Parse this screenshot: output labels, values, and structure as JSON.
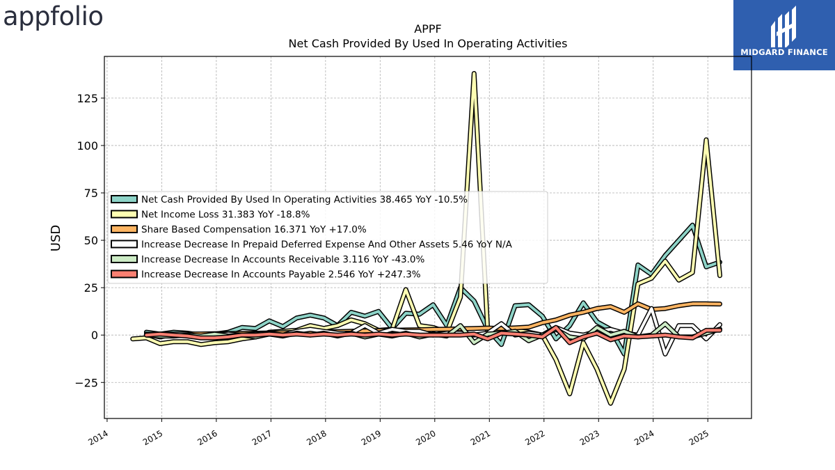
{
  "brand": {
    "logo_text": "appfolio",
    "badge_text": "MIDGARD FINANCE"
  },
  "colors": {
    "net_cash": "#8dd3c7",
    "net_income": "#ffffb3",
    "sbc": "#fdb462",
    "prepaid": "#ffffff",
    "receivable": "#ccebc5",
    "payable": "#fb8072"
  },
  "chart_data": {
    "type": "line",
    "title": "APPF",
    "subtitle": "Net Cash Provided By Used In Operating Activities",
    "ylabel": "USD",
    "xlabel": "",
    "xlim": [
      2013.95,
      2025.8
    ],
    "ylim": [
      -44,
      147
    ],
    "x_ticks": [
      2014,
      2015,
      2016,
      2017,
      2018,
      2019,
      2020,
      2021,
      2022,
      2023,
      2024,
      2025
    ],
    "y_ticks": [
      -25,
      0,
      25,
      50,
      75,
      100,
      125
    ],
    "y_tick_labels": [
      "−25",
      "0",
      "25",
      "50",
      "75",
      "100",
      "125"
    ],
    "grid": true,
    "legend_position": "center-left",
    "series": [
      {
        "name": "Net Cash Provided By Used In Operating Activities",
        "legend": "Net Cash Provided By Used In Operating Activities  38.465 YoY -10.5%",
        "color": "#8dd3c7",
        "x": [
          2014.72,
          2014.97,
          2015.22,
          2015.47,
          2015.72,
          2015.97,
          2016.22,
          2016.47,
          2016.72,
          2016.97,
          2017.22,
          2017.47,
          2017.72,
          2017.97,
          2018.22,
          2018.47,
          2018.72,
          2018.97,
          2019.22,
          2019.47,
          2019.72,
          2019.97,
          2020.22,
          2020.47,
          2020.72,
          2020.97,
          2021.22,
          2021.47,
          2021.72,
          2021.97,
          2022.22,
          2022.47,
          2022.72,
          2022.97,
          2023.22,
          2023.47,
          2023.72,
          2023.97,
          2024.22,
          2024.47,
          2024.72,
          2024.97,
          2025.22
        ],
        "y": [
          1.5,
          0.5,
          1.5,
          1,
          0,
          0.5,
          1.5,
          4,
          3.5,
          7.5,
          4.5,
          9,
          10.5,
          9,
          5,
          12,
          10,
          12.5,
          3.5,
          11.5,
          11,
          16,
          5,
          25,
          18,
          3,
          -5,
          15.5,
          16,
          10,
          -2,
          5,
          17,
          7,
          3,
          -10,
          37,
          32,
          42,
          50,
          58,
          36,
          38.465
        ]
      },
      {
        "name": "Net Income Loss",
        "legend": "Net Income Loss  31.383 YoY -18.8%",
        "color": "#ffffb3",
        "x": [
          2014.47,
          2014.72,
          2014.97,
          2015.22,
          2015.47,
          2015.72,
          2015.97,
          2016.22,
          2016.47,
          2016.72,
          2016.97,
          2017.22,
          2017.47,
          2017.72,
          2017.97,
          2018.22,
          2018.47,
          2018.72,
          2018.97,
          2019.22,
          2019.47,
          2019.72,
          2019.97,
          2020.22,
          2020.47,
          2020.72,
          2020.97,
          2021.22,
          2021.47,
          2021.72,
          2021.97,
          2022.22,
          2022.47,
          2022.72,
          2022.97,
          2023.22,
          2023.47,
          2023.72,
          2023.97,
          2024.22,
          2024.47,
          2024.72,
          2024.97,
          2025.22
        ],
        "y": [
          -2,
          -1.5,
          -4.5,
          -3.5,
          -3.5,
          -5,
          -4,
          -3.5,
          -2,
          -1,
          1.5,
          2,
          2.5,
          5,
          3.5,
          5,
          8,
          6,
          2.5,
          3,
          24,
          5,
          4,
          1.5,
          20,
          138,
          2,
          3,
          2.5,
          1.5,
          0,
          -13,
          -31,
          -4,
          -18,
          -36,
          -18,
          27,
          30,
          39,
          29,
          33,
          103,
          31.383
        ]
      },
      {
        "name": "Share Based Compensation",
        "legend": "Share Based Compensation  16.371 YoY +17.0%",
        "color": "#fdb462",
        "x": [
          2014.72,
          2014.97,
          2015.22,
          2015.47,
          2015.72,
          2015.97,
          2016.22,
          2016.47,
          2016.72,
          2016.97,
          2017.22,
          2017.47,
          2017.72,
          2017.97,
          2018.22,
          2018.47,
          2018.72,
          2018.97,
          2019.22,
          2019.47,
          2019.72,
          2019.97,
          2020.22,
          2020.47,
          2020.72,
          2020.97,
          2021.22,
          2021.47,
          2021.72,
          2021.97,
          2022.22,
          2022.47,
          2022.72,
          2022.97,
          2023.22,
          2023.47,
          2023.72,
          2023.97,
          2024.22,
          2024.47,
          2024.72,
          2024.97,
          2025.22
        ],
        "y": [
          0.4,
          0.5,
          0.5,
          0.6,
          0.6,
          0.7,
          0.8,
          0.9,
          1,
          1.1,
          1.2,
          1.4,
          1.5,
          1.6,
          1.8,
          2,
          2.2,
          2.4,
          2.5,
          2.7,
          2.8,
          3,
          3.1,
          3.3,
          3.5,
          3.7,
          3.5,
          3.8,
          4.2,
          6.5,
          8,
          10.5,
          12,
          14,
          15,
          12,
          16.5,
          13.5,
          14,
          15.5,
          16.5,
          16.5,
          16.371
        ]
      },
      {
        "name": "Increase Decrease In Prepaid Deferred Expense And Other Assets",
        "legend": "Increase Decrease In Prepaid Deferred Expense And Other Assets  5.46 YoY N/A",
        "color": "#ffffff",
        "x": [
          2014.72,
          2014.97,
          2015.22,
          2015.47,
          2015.72,
          2015.97,
          2016.22,
          2016.47,
          2016.72,
          2016.97,
          2017.22,
          2017.47,
          2017.72,
          2017.97,
          2018.22,
          2018.47,
          2018.72,
          2018.97,
          2019.22,
          2019.47,
          2019.72,
          2019.97,
          2020.22,
          2020.47,
          2020.72,
          2020.97,
          2021.22,
          2021.47,
          2021.72,
          2021.97,
          2022.22,
          2022.47,
          2022.72,
          2022.97,
          2023.22,
          2023.47,
          2023.72,
          2023.97,
          2024.22,
          2024.47,
          2024.72,
          2024.97,
          2025.22
        ],
        "y": [
          0.5,
          -1,
          0.5,
          0.5,
          -1,
          0,
          0.5,
          0,
          0.5,
          1,
          0,
          2,
          3,
          2,
          1,
          1,
          5,
          1,
          3,
          2,
          2,
          0,
          1,
          1,
          0,
          1,
          6,
          0,
          1,
          0,
          4,
          1,
          0,
          2,
          3,
          1,
          0,
          14,
          -10,
          5,
          5,
          -2,
          5.46
        ]
      },
      {
        "name": "Increase Decrease In Accounts Receivable",
        "legend": "Increase Decrease In Accounts Receivable  3.116 YoY -43.0%",
        "color": "#ccebc5",
        "x": [
          2014.72,
          2014.97,
          2015.22,
          2015.47,
          2015.72,
          2015.97,
          2016.22,
          2016.47,
          2016.72,
          2016.97,
          2017.22,
          2017.47,
          2017.72,
          2017.97,
          2018.22,
          2018.47,
          2018.72,
          2018.97,
          2019.22,
          2019.47,
          2019.72,
          2019.97,
          2020.22,
          2020.47,
          2020.72,
          2020.97,
          2021.22,
          2021.47,
          2021.72,
          2021.97,
          2022.22,
          2022.47,
          2022.72,
          2022.97,
          2023.22,
          2023.47,
          2023.72,
          2023.97,
          2024.22,
          2024.47,
          2024.72,
          2024.97,
          2025.22
        ],
        "y": [
          0,
          -0.5,
          -0.5,
          0,
          -0.5,
          0.5,
          -0.5,
          0,
          -1,
          0.5,
          -0.5,
          1,
          0,
          1,
          -0.5,
          1,
          -1,
          0.5,
          -0.5,
          1,
          -1,
          0.5,
          -0.5,
          5,
          -4,
          0.5,
          1,
          2,
          -3,
          0,
          3,
          -1,
          -2,
          4,
          0,
          2,
          -1,
          0,
          6,
          -1,
          -1,
          1,
          3.116
        ]
      },
      {
        "name": "Increase Decrease In Accounts Payable",
        "legend": "Increase Decrease In Accounts Payable  2.546 YoY +247.3%",
        "color": "#fb8072",
        "x": [
          2014.72,
          2014.97,
          2015.22,
          2015.47,
          2015.72,
          2015.97,
          2016.22,
          2016.47,
          2016.72,
          2016.97,
          2017.22,
          2017.47,
          2017.72,
          2017.97,
          2018.22,
          2018.47,
          2018.72,
          2018.97,
          2019.22,
          2019.47,
          2019.72,
          2019.97,
          2020.22,
          2020.47,
          2020.72,
          2020.97,
          2021.22,
          2021.47,
          2021.72,
          2021.97,
          2022.22,
          2022.47,
          2022.72,
          2022.97,
          2023.22,
          2023.47,
          2023.72,
          2023.97,
          2024.22,
          2024.47,
          2024.72,
          2024.97,
          2025.22
        ],
        "y": [
          0,
          0.5,
          0,
          -0.5,
          -1.5,
          -1.5,
          -1,
          0,
          0,
          0.5,
          0,
          0.5,
          0,
          0.5,
          0,
          0.5,
          0,
          0.5,
          0,
          0.5,
          0,
          0,
          0,
          0,
          0.5,
          -2,
          1,
          0.5,
          0,
          -1,
          4,
          -4,
          -1,
          1,
          -2.5,
          -0.5,
          -1,
          -0.5,
          0,
          -1,
          -1.5,
          2.5,
          2.546
        ]
      }
    ]
  }
}
